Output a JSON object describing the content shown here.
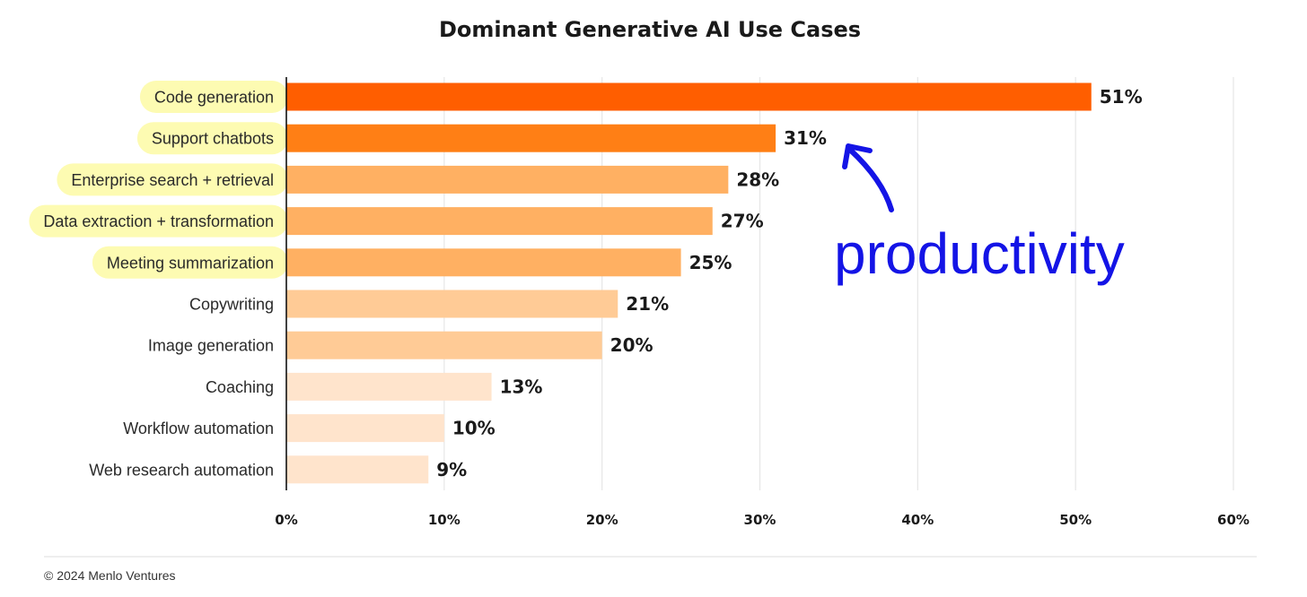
{
  "chart_data": {
    "type": "bar",
    "orientation": "horizontal",
    "title": "Dominant Generative AI Use Cases",
    "categories": [
      "Code generation",
      "Support chatbots",
      "Enterprise search + retrieval",
      "Data extraction + transformation",
      "Meeting summarization",
      "Copywriting",
      "Image generation",
      "Coaching",
      "Workflow automation",
      "Web research automation"
    ],
    "values": [
      51,
      31,
      28,
      27,
      25,
      21,
      20,
      13,
      10,
      9
    ],
    "value_labels": [
      "51%",
      "31%",
      "28%",
      "27%",
      "25%",
      "21%",
      "20%",
      "13%",
      "10%",
      "9%"
    ],
    "highlighted": [
      true,
      true,
      true,
      true,
      true,
      false,
      false,
      false,
      false,
      false
    ],
    "bar_colors": [
      "#ff5e00",
      "#ff7f15",
      "#ffb062",
      "#ffb062",
      "#ffb062",
      "#ffcb96",
      "#ffcb96",
      "#ffe4cc",
      "#ffe4cc",
      "#ffe4cc"
    ],
    "xlim": [
      0,
      60
    ],
    "xticks": [
      0,
      10,
      20,
      30,
      40,
      50,
      60
    ],
    "xtick_labels": [
      "0%",
      "10%",
      "20%",
      "30%",
      "40%",
      "50%",
      "60%"
    ],
    "grid": "vertical",
    "xlabel": "",
    "ylabel": ""
  },
  "annotation": {
    "text": "productivity",
    "color": "#1414e6",
    "arrow": "points-up-left-toward-support-chatbots"
  },
  "highlight_color": "#fdfbb2",
  "footer": {
    "text": "© 2024 Menlo Ventures"
  }
}
